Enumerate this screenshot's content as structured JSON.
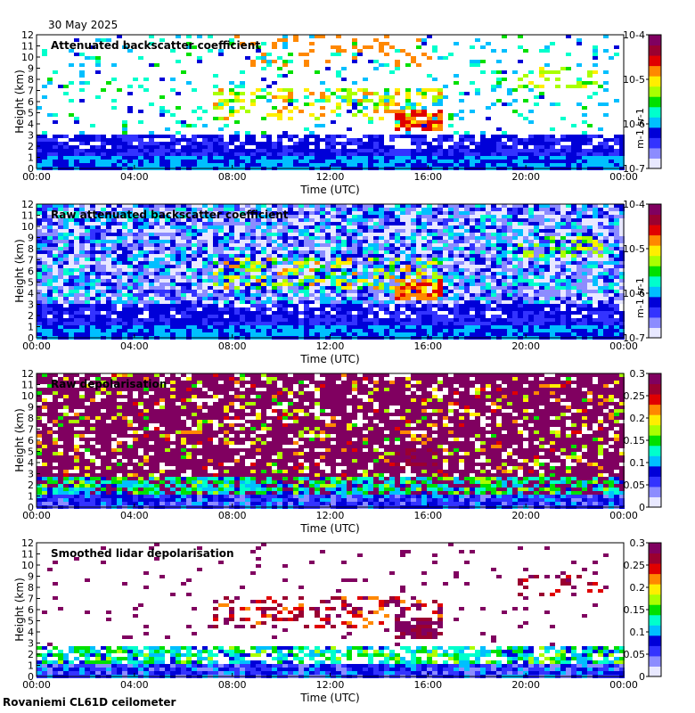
{
  "date": "30 May 2025",
  "instrument": "Rovaniemi CL61D ceilometer",
  "colors": {
    "colormap": [
      "#e8e8ff",
      "#8c8cff",
      "#3333ff",
      "#0000d8",
      "#00bfff",
      "#00ffcc",
      "#00e000",
      "#aaff00",
      "#ffee00",
      "#ff8800",
      "#e00000",
      "#9a0030",
      "#800060"
    ]
  },
  "chart_data": [
    {
      "type": "heatmap",
      "title": "Attenuated backscatter coefficient",
      "xlabel": "Time (UTC)",
      "ylabel": "Height (km)",
      "x_ticks": [
        "00:00",
        "04:00",
        "08:00",
        "12:00",
        "16:00",
        "20:00",
        "00:00"
      ],
      "y_ticks": [
        "0",
        "1",
        "2",
        "3",
        "4",
        "5",
        "6",
        "7",
        "8",
        "9",
        "10",
        "11",
        "12"
      ],
      "ylim": [
        0,
        12
      ],
      "colorbar": {
        "scale": "log",
        "ticks": [
          "10-7",
          "10-6",
          "10-5",
          "10-4"
        ],
        "unit": "m-1 sr-1",
        "range": [
          1e-07,
          0.0001
        ]
      }
    },
    {
      "type": "heatmap",
      "title": "Raw attenuated backscatter coefficient",
      "xlabel": "Time (UTC)",
      "ylabel": "Height (km)",
      "x_ticks": [
        "00:00",
        "04:00",
        "08:00",
        "12:00",
        "16:00",
        "20:00",
        "00:00"
      ],
      "y_ticks": [
        "0",
        "1",
        "2",
        "3",
        "4",
        "5",
        "6",
        "7",
        "8",
        "9",
        "10",
        "11",
        "12"
      ],
      "ylim": [
        0,
        12
      ],
      "colorbar": {
        "scale": "log",
        "ticks": [
          "10-7",
          "10-6",
          "10-5",
          "10-4"
        ],
        "unit": "m-1 sr-1",
        "range": [
          1e-07,
          0.0001
        ]
      }
    },
    {
      "type": "heatmap",
      "title": "Raw depolarisation",
      "xlabel": "Time (UTC)",
      "ylabel": "Height (km)",
      "x_ticks": [
        "00:00",
        "04:00",
        "08:00",
        "12:00",
        "16:00",
        "20:00",
        "00:00"
      ],
      "y_ticks": [
        "0",
        "1",
        "2",
        "3",
        "4",
        "5",
        "6",
        "7",
        "8",
        "9",
        "10",
        "11",
        "12"
      ],
      "ylim": [
        0,
        12
      ],
      "colorbar": {
        "scale": "linear",
        "ticks": [
          "0",
          "0.05",
          "0.1",
          "0.15",
          "0.2",
          "0.25",
          "0.3"
        ],
        "unit": "",
        "range": [
          0,
          0.3
        ]
      }
    },
    {
      "type": "heatmap",
      "title": "Smoothed lidar depolarisation",
      "xlabel": "Time (UTC)",
      "ylabel": "Height (km)",
      "x_ticks": [
        "00:00",
        "04:00",
        "08:00",
        "12:00",
        "16:00",
        "20:00",
        "00:00"
      ],
      "y_ticks": [
        "0",
        "1",
        "2",
        "3",
        "4",
        "5",
        "6",
        "7",
        "8",
        "9",
        "10",
        "11",
        "12"
      ],
      "ylim": [
        0,
        12
      ],
      "colorbar": {
        "scale": "linear",
        "ticks": [
          "0",
          "0.05",
          "0.1",
          "0.15",
          "0.2",
          "0.25",
          "0.3"
        ],
        "unit": "",
        "range": [
          0,
          0.3
        ]
      }
    }
  ]
}
